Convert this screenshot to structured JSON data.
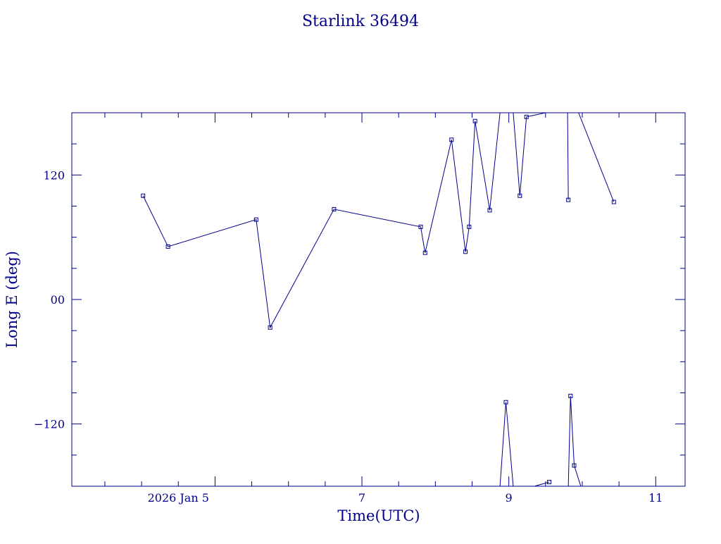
{
  "chart_data": {
    "type": "line",
    "title": "Starlink 36494",
    "xlabel": "Time(UTC)",
    "ylabel": "Long E (deg)",
    "x_unit": "days (2026 Jan)",
    "xlim": [
      3.05,
      11.4
    ],
    "ylim": [
      -180,
      180
    ],
    "x_ticks": [
      {
        "value": 4.5,
        "label": "2026 Jan  5"
      },
      {
        "value": 7,
        "label": "7"
      },
      {
        "value": 9,
        "label": "9"
      },
      {
        "value": 11,
        "label": "11"
      }
    ],
    "y_ticks": [
      {
        "value": 120,
        "label": "120"
      },
      {
        "value": 0,
        "label": "00"
      },
      {
        "value": -120,
        "label": "−120"
      }
    ],
    "color": "#00008b",
    "grid": false,
    "series": [
      {
        "points": [
          [
            4.02,
            100
          ],
          [
            4.36,
            51
          ],
          [
            5.56,
            77
          ],
          [
            5.75,
            -27
          ],
          [
            6.62,
            87
          ],
          [
            7.8,
            70
          ],
          [
            7.86,
            45
          ],
          [
            8.22,
            154
          ],
          [
            8.41,
            46
          ],
          [
            8.46,
            70
          ],
          [
            8.54,
            172
          ],
          [
            8.74,
            86
          ],
          [
            8.88,
            180
          ]
        ]
      },
      {
        "points": [
          [
            8.88,
            -180
          ],
          [
            8.96,
            -99
          ],
          [
            9.06,
            -180
          ]
        ]
      },
      {
        "points": [
          [
            9.06,
            180
          ],
          [
            9.15,
            100
          ],
          [
            9.24,
            176
          ],
          [
            9.5,
            180
          ]
        ]
      },
      {
        "points": [
          [
            9.35,
            -180
          ],
          [
            9.55,
            -176
          ]
        ]
      },
      {
        "points": [
          [
            9.8,
            180
          ],
          [
            9.81,
            96
          ]
        ]
      },
      {
        "points": [
          [
            9.81,
            -180
          ],
          [
            9.84,
            -93
          ],
          [
            9.89,
            -160
          ],
          [
            9.98,
            -180
          ]
        ]
      },
      {
        "points": [
          [
            9.95,
            180
          ],
          [
            10.43,
            94
          ]
        ]
      }
    ],
    "markers": [
      [
        4.02,
        100
      ],
      [
        4.36,
        51
      ],
      [
        5.56,
        77
      ],
      [
        5.75,
        -27
      ],
      [
        6.62,
        87
      ],
      [
        7.8,
        70
      ],
      [
        7.86,
        45
      ],
      [
        8.22,
        154
      ],
      [
        8.41,
        46
      ],
      [
        8.46,
        70
      ],
      [
        8.54,
        172
      ],
      [
        8.74,
        86
      ],
      [
        8.96,
        -99
      ],
      [
        9.15,
        100
      ],
      [
        9.24,
        176
      ],
      [
        9.55,
        -176
      ],
      [
        9.81,
        96
      ],
      [
        9.84,
        -93
      ],
      [
        9.89,
        -160
      ],
      [
        10.43,
        94
      ]
    ]
  }
}
